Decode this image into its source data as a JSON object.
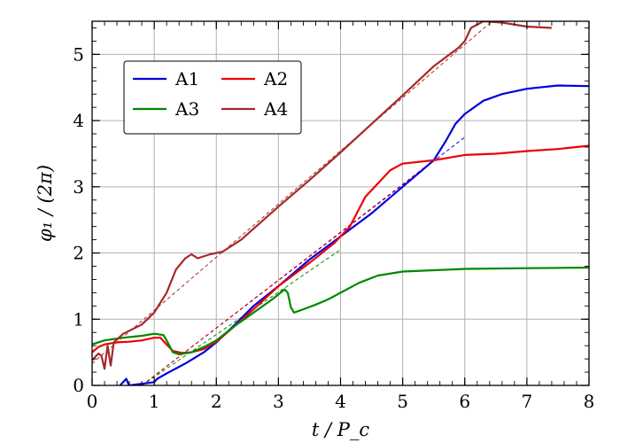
{
  "chart_data": {
    "type": "line",
    "title": "",
    "xlabel": "t / P_c",
    "ylabel": "φ₁ / (2π)",
    "xlim": [
      0,
      8
    ],
    "ylim": [
      0,
      5.5
    ],
    "x_ticks": [
      0,
      1,
      2,
      3,
      4,
      5,
      6,
      7,
      8
    ],
    "y_ticks": [
      0,
      1,
      2,
      3,
      4,
      5
    ],
    "grid": true,
    "legend_position": "top-left",
    "series": [
      {
        "name": "A1",
        "color": "#0000dd",
        "style": "solid",
        "points": [
          [
            0.45,
            0.0
          ],
          [
            0.5,
            0.05
          ],
          [
            0.55,
            0.1
          ],
          [
            0.58,
            0.03
          ],
          [
            0.6,
            0.0
          ],
          [
            1.0,
            0.05
          ],
          [
            1.05,
            0.1
          ],
          [
            1.2,
            0.18
          ],
          [
            1.5,
            0.33
          ],
          [
            1.8,
            0.5
          ],
          [
            2.0,
            0.65
          ],
          [
            2.3,
            0.92
          ],
          [
            2.6,
            1.2
          ],
          [
            3.0,
            1.5
          ],
          [
            3.5,
            1.9
          ],
          [
            4.0,
            2.25
          ],
          [
            4.5,
            2.6
          ],
          [
            5.0,
            3.0
          ],
          [
            5.5,
            3.4
          ],
          [
            5.7,
            3.7
          ],
          [
            5.85,
            3.95
          ],
          [
            6.0,
            4.1
          ],
          [
            6.3,
            4.3
          ],
          [
            6.6,
            4.4
          ],
          [
            7.0,
            4.48
          ],
          [
            7.5,
            4.53
          ],
          [
            8.0,
            4.52
          ]
        ]
      },
      {
        "name": "A2",
        "color": "#ee0000",
        "style": "solid",
        "points": [
          [
            0.0,
            0.5
          ],
          [
            0.1,
            0.58
          ],
          [
            0.2,
            0.62
          ],
          [
            0.4,
            0.65
          ],
          [
            0.6,
            0.66
          ],
          [
            0.8,
            0.68
          ],
          [
            1.0,
            0.72
          ],
          [
            1.1,
            0.72
          ],
          [
            1.2,
            0.62
          ],
          [
            1.3,
            0.52
          ],
          [
            1.45,
            0.49
          ],
          [
            1.6,
            0.5
          ],
          [
            1.8,
            0.55
          ],
          [
            2.0,
            0.66
          ],
          [
            2.3,
            0.9
          ],
          [
            2.6,
            1.15
          ],
          [
            3.0,
            1.5
          ],
          [
            3.5,
            1.85
          ],
          [
            3.9,
            2.15
          ],
          [
            4.15,
            2.4
          ],
          [
            4.4,
            2.85
          ],
          [
            4.6,
            3.05
          ],
          [
            4.8,
            3.25
          ],
          [
            5.0,
            3.35
          ],
          [
            5.5,
            3.4
          ],
          [
            6.0,
            3.48
          ],
          [
            6.5,
            3.5
          ],
          [
            7.0,
            3.54
          ],
          [
            7.5,
            3.57
          ],
          [
            8.0,
            3.62
          ]
        ]
      },
      {
        "name": "A3",
        "color": "#008800",
        "style": "solid",
        "points": [
          [
            0.0,
            0.62
          ],
          [
            0.2,
            0.68
          ],
          [
            0.5,
            0.72
          ],
          [
            0.8,
            0.75
          ],
          [
            1.0,
            0.78
          ],
          [
            1.15,
            0.76
          ],
          [
            1.2,
            0.68
          ],
          [
            1.3,
            0.5
          ],
          [
            1.4,
            0.47
          ],
          [
            1.6,
            0.5
          ],
          [
            1.8,
            0.58
          ],
          [
            2.0,
            0.68
          ],
          [
            2.3,
            0.9
          ],
          [
            2.6,
            1.1
          ],
          [
            2.9,
            1.3
          ],
          [
            3.1,
            1.45
          ],
          [
            3.15,
            1.4
          ],
          [
            3.2,
            1.18
          ],
          [
            3.25,
            1.1
          ],
          [
            3.4,
            1.15
          ],
          [
            3.6,
            1.22
          ],
          [
            3.8,
            1.3
          ],
          [
            4.0,
            1.4
          ],
          [
            4.3,
            1.55
          ],
          [
            4.6,
            1.66
          ],
          [
            5.0,
            1.72
          ],
          [
            5.5,
            1.74
          ],
          [
            6.0,
            1.76
          ],
          [
            7.0,
            1.77
          ],
          [
            8.0,
            1.78
          ]
        ]
      },
      {
        "name": "A4",
        "color": "#a52a2a",
        "style": "solid",
        "points": [
          [
            0.0,
            0.38
          ],
          [
            0.1,
            0.48
          ],
          [
            0.15,
            0.45
          ],
          [
            0.2,
            0.25
          ],
          [
            0.25,
            0.6
          ],
          [
            0.3,
            0.3
          ],
          [
            0.35,
            0.65
          ],
          [
            0.5,
            0.78
          ],
          [
            0.8,
            0.92
          ],
          [
            1.0,
            1.1
          ],
          [
            1.2,
            1.4
          ],
          [
            1.35,
            1.75
          ],
          [
            1.5,
            1.92
          ],
          [
            1.6,
            1.98
          ],
          [
            1.7,
            1.92
          ],
          [
            1.9,
            1.98
          ],
          [
            2.1,
            2.02
          ],
          [
            2.4,
            2.2
          ],
          [
            2.7,
            2.45
          ],
          [
            3.0,
            2.7
          ],
          [
            3.5,
            3.1
          ],
          [
            4.0,
            3.52
          ],
          [
            4.5,
            3.95
          ],
          [
            5.0,
            4.38
          ],
          [
            5.5,
            4.82
          ],
          [
            5.9,
            5.1
          ],
          [
            6.0,
            5.2
          ],
          [
            6.1,
            5.4
          ],
          [
            6.3,
            5.5
          ],
          [
            6.6,
            5.48
          ],
          [
            7.0,
            5.42
          ],
          [
            7.4,
            5.4
          ]
        ]
      }
    ],
    "fit_lines": [
      {
        "series": "A1",
        "color": "#0000dd",
        "style": "dashed",
        "points": [
          [
            0.8,
            0.0
          ],
          [
            6.0,
            3.75
          ]
        ]
      },
      {
        "series": "A2",
        "color": "#ee0000",
        "style": "dashed",
        "points": [
          [
            0.8,
            0.0
          ],
          [
            5.5,
            3.4
          ]
        ]
      },
      {
        "series": "A3",
        "color": "#008800",
        "style": "dashed",
        "points": [
          [
            0.8,
            0.0
          ],
          [
            4.0,
            2.05
          ]
        ]
      },
      {
        "series": "A4",
        "color": "#a52a2a",
        "style": "dashed",
        "points": [
          [
            0.0,
            0.33
          ],
          [
            6.5,
            5.55
          ]
        ]
      }
    ]
  }
}
